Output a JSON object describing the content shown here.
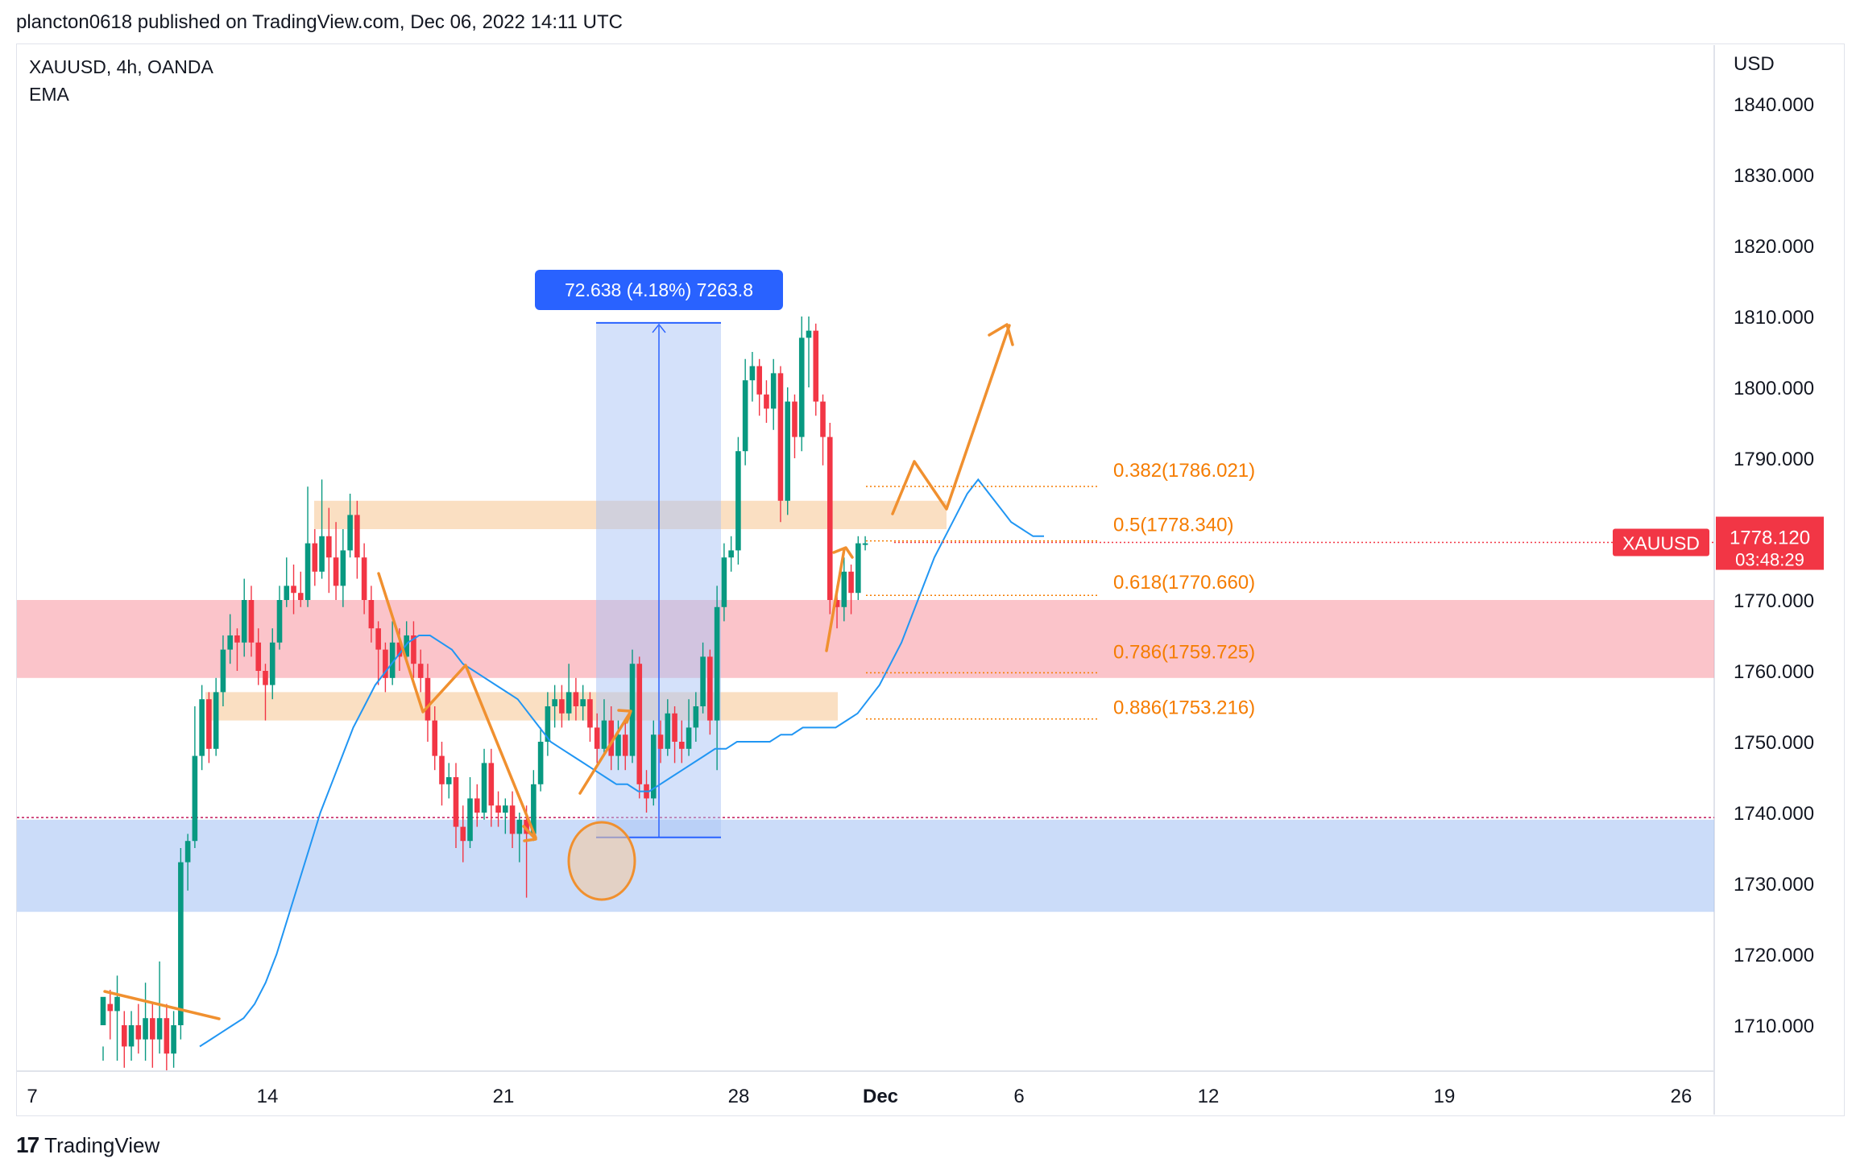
{
  "header": {
    "published_text": "plancton0618 published on TradingView.com, Dec 06, 2022 14:11 UTC"
  },
  "symbol_line": "XAUUSD, 4h, OANDA",
  "indicator_line": "EMA",
  "currency": "USD",
  "footer": {
    "logo": "17",
    "brand": "TradingView"
  },
  "price_tag": {
    "symbol": "XAUUSD",
    "price": "1778.120",
    "countdown": "03:48:29"
  },
  "measure_label": "72.638 (4.18%) 7263.8",
  "fib_labels": [
    "0.382(1786.021)",
    "0.5(1778.340)",
    "0.618(1770.660)",
    "0.786(1759.725)",
    "0.886(1753.216)"
  ],
  "colors": {
    "bull": "#089981",
    "bear": "#f23645",
    "ema": "#2196f3",
    "fib": "#f57c00",
    "annotation": "#f0902f",
    "measure": "#2962ff"
  },
  "chart_data": {
    "type": "candlestick",
    "y_ticks": [
      "1840.000",
      "1830.000",
      "1820.000",
      "1810.000",
      "1800.000",
      "1790.000",
      "1780.000",
      "1770.000",
      "1760.000",
      "1750.000",
      "1740.000",
      "1730.000",
      "1720.000",
      "1710.000"
    ],
    "ylim": [
      1703,
      1846
    ],
    "x_ticks": [
      "7",
      "14",
      "21",
      "28",
      "Dec",
      "6",
      "12",
      "19",
      "26"
    ],
    "last_price": 1778.12,
    "fib_levels": [
      1786.021,
      1778.34,
      1770.66,
      1759.725,
      1753.216
    ],
    "zones": [
      {
        "name": "resistance-band",
        "low": 1780,
        "high": 1784,
        "color": "#f7c99a"
      },
      {
        "name": "red-zone",
        "low": 1759,
        "high": 1770,
        "color": "#f99da6"
      },
      {
        "name": "support-band",
        "low": 1753,
        "high": 1757,
        "color": "#f7c99a"
      },
      {
        "name": "blue-zone",
        "low": 1726,
        "high": 1739,
        "color": "#a9c4f5"
      }
    ],
    "measure": {
      "from": 1736.5,
      "to": 1809.1,
      "change": 72.638,
      "percent": 4.18
    },
    "candles": [
      [
        1710,
        1714,
        1707,
        1705
      ],
      [
        1713,
        1712,
        1715,
        1708
      ],
      [
        1712,
        1714,
        1717,
        1705
      ],
      [
        1710,
        1707,
        1712,
        1704
      ],
      [
        1707,
        1710,
        1712,
        1705
      ],
      [
        1710,
        1708,
        1713,
        1706
      ],
      [
        1708,
        1711,
        1716,
        1705
      ],
      [
        1711,
        1708,
        1713,
        1704
      ],
      [
        1708,
        1711,
        1719,
        1706
      ],
      [
        1711,
        1706,
        1713,
        1703
      ],
      [
        1706,
        1710,
        1712,
        1704
      ],
      [
        1710,
        1733,
        1735,
        1708
      ],
      [
        1733,
        1736,
        1737,
        1729
      ],
      [
        1736,
        1748,
        1755,
        1735
      ],
      [
        1748,
        1756,
        1758,
        1746
      ],
      [
        1756,
        1749,
        1757,
        1747
      ],
      [
        1749,
        1757,
        1759,
        1748
      ],
      [
        1757,
        1763,
        1765,
        1755
      ],
      [
        1763,
        1765,
        1768,
        1761
      ],
      [
        1765,
        1764,
        1766,
        1760
      ],
      [
        1764,
        1770,
        1773,
        1762
      ],
      [
        1770,
        1764,
        1772,
        1762
      ],
      [
        1764,
        1760,
        1766,
        1758
      ],
      [
        1760,
        1758,
        1761,
        1753
      ],
      [
        1758,
        1764,
        1766,
        1756
      ],
      [
        1764,
        1770,
        1772,
        1763
      ],
      [
        1770,
        1772,
        1776,
        1769
      ],
      [
        1772,
        1771,
        1775,
        1768
      ],
      [
        1771,
        1770,
        1774,
        1769
      ],
      [
        1770,
        1778,
        1786,
        1769
      ],
      [
        1778,
        1774,
        1780,
        1772
      ],
      [
        1774,
        1779,
        1787,
        1773
      ],
      [
        1779,
        1776,
        1783,
        1771
      ],
      [
        1776,
        1772,
        1781,
        1770
      ],
      [
        1772,
        1777,
        1780,
        1769
      ],
      [
        1777,
        1782,
        1785,
        1776
      ],
      [
        1782,
        1776,
        1784,
        1773
      ],
      [
        1776,
        1770,
        1778,
        1768
      ],
      [
        1770,
        1766,
        1772,
        1764
      ],
      [
        1766,
        1763,
        1767,
        1758
      ],
      [
        1763,
        1759,
        1764,
        1757
      ],
      [
        1759,
        1764,
        1767,
        1758
      ],
      [
        1764,
        1762,
        1766,
        1760
      ],
      [
        1762,
        1765,
        1767,
        1761
      ],
      [
        1765,
        1761,
        1767,
        1759
      ],
      [
        1761,
        1759,
        1763,
        1757
      ],
      [
        1759,
        1753,
        1761,
        1750
      ],
      [
        1753,
        1748,
        1755,
        1746
      ],
      [
        1748,
        1744,
        1750,
        1741
      ],
      [
        1744,
        1745,
        1747,
        1742
      ],
      [
        1745,
        1738,
        1747,
        1735
      ],
      [
        1738,
        1736,
        1741,
        1733
      ],
      [
        1736,
        1742,
        1745,
        1735
      ],
      [
        1742,
        1740,
        1744,
        1738
      ],
      [
        1740,
        1747,
        1749,
        1739
      ],
      [
        1747,
        1741,
        1749,
        1738
      ],
      [
        1741,
        1740,
        1743,
        1738
      ],
      [
        1740,
        1741,
        1742,
        1737
      ],
      [
        1741,
        1737,
        1743,
        1735
      ],
      [
        1737,
        1739,
        1740,
        1733
      ],
      [
        1739,
        1737,
        1741,
        1728
      ],
      [
        1737,
        1744,
        1746,
        1736
      ],
      [
        1744,
        1750,
        1752,
        1743
      ],
      [
        1750,
        1755,
        1757,
        1748
      ],
      [
        1755,
        1756,
        1758,
        1752
      ],
      [
        1756,
        1754,
        1758,
        1752
      ],
      [
        1754,
        1757,
        1761,
        1753
      ],
      [
        1757,
        1755,
        1759,
        1753
      ],
      [
        1755,
        1756,
        1758,
        1753
      ],
      [
        1756,
        1752,
        1757,
        1750
      ],
      [
        1752,
        1749,
        1754,
        1747
      ],
      [
        1749,
        1753,
        1756,
        1748
      ],
      [
        1753,
        1748,
        1755,
        1746
      ],
      [
        1748,
        1751,
        1753,
        1746
      ],
      [
        1751,
        1748,
        1753,
        1746
      ],
      [
        1748,
        1761,
        1763,
        1747
      ],
      [
        1761,
        1744,
        1762,
        1742
      ],
      [
        1744,
        1742,
        1746,
        1740
      ],
      [
        1742,
        1751,
        1753,
        1741
      ],
      [
        1751,
        1749,
        1753,
        1747
      ],
      [
        1749,
        1754,
        1756,
        1748
      ],
      [
        1754,
        1750,
        1755,
        1747
      ],
      [
        1750,
        1749,
        1753,
        1747
      ],
      [
        1749,
        1752,
        1756,
        1748
      ],
      [
        1752,
        1755,
        1757,
        1750
      ],
      [
        1755,
        1762,
        1764,
        1754
      ],
      [
        1762,
        1753,
        1763,
        1751
      ],
      [
        1753,
        1769,
        1772,
        1746
      ],
      [
        1769,
        1776,
        1778,
        1767
      ],
      [
        1776,
        1777,
        1779,
        1774
      ],
      [
        1777,
        1791,
        1793,
        1775
      ],
      [
        1791,
        1801,
        1804,
        1789
      ],
      [
        1801,
        1803,
        1805,
        1798
      ],
      [
        1803,
        1799,
        1804,
        1796
      ],
      [
        1799,
        1797,
        1801,
        1795
      ],
      [
        1797,
        1802,
        1804,
        1794
      ],
      [
        1802,
        1784,
        1803,
        1781
      ],
      [
        1784,
        1798,
        1800,
        1782
      ],
      [
        1798,
        1793,
        1799,
        1790
      ],
      [
        1793,
        1807,
        1810,
        1791
      ],
      [
        1807,
        1808,
        1810,
        1800
      ],
      [
        1808,
        1798,
        1809,
        1796
      ],
      [
        1798,
        1793,
        1799,
        1789
      ],
      [
        1793,
        1770,
        1795,
        1768
      ],
      [
        1770,
        1769,
        1772,
        1766
      ],
      [
        1769,
        1774,
        1776,
        1767
      ],
      [
        1774,
        1771,
        1775,
        1768
      ],
      [
        1771,
        1778,
        1779,
        1770
      ],
      [
        1778,
        1778,
        1779,
        1777
      ]
    ],
    "ema": [
      1707,
      1708,
      1709,
      1710,
      1711,
      1713,
      1716,
      1720,
      1725,
      1730,
      1735,
      1740,
      1744,
      1748,
      1752,
      1755,
      1758,
      1760,
      1762,
      1764,
      1765,
      1765,
      1764,
      1763,
      1761,
      1760,
      1759,
      1758,
      1757,
      1756,
      1754,
      1752,
      1750,
      1749,
      1748,
      1747,
      1746,
      1745,
      1744,
      1744,
      1743,
      1743,
      1744,
      1745,
      1746,
      1747,
      1748,
      1749,
      1749,
      1750,
      1750,
      1750,
      1750,
      1751,
      1751,
      1752,
      1752,
      1752,
      1752,
      1753,
      1754,
      1756,
      1758,
      1761,
      1764,
      1768,
      1772,
      1776,
      1779,
      1782,
      1785,
      1787,
      1785,
      1783,
      1781,
      1780,
      1779,
      1779
    ]
  }
}
